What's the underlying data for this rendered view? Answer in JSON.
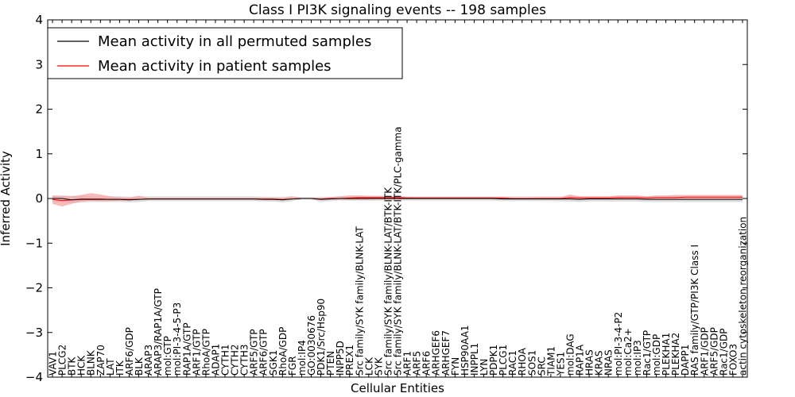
{
  "chart_data": {
    "type": "line",
    "title": "Class I PI3K signaling events -- 198 samples",
    "xlabel": "Cellular Entities",
    "ylabel": "Inferred Activity",
    "ylim": [
      -4,
      4
    ],
    "yticks": [
      -4,
      -3,
      -2,
      -1,
      0,
      1,
      2,
      3,
      4
    ],
    "ytick_labels": [
      "−4",
      "−3",
      "−2",
      "−1",
      "0",
      "1",
      "2",
      "3",
      "4"
    ],
    "grid": false,
    "legend_position": "top-left",
    "categories": [
      "VAV1",
      "PLCG2",
      "BTK",
      "HCK",
      "BLNK",
      "ZAP70",
      "LAT",
      "ITK",
      "ARF6/GDP",
      "BLK",
      "ARAP3",
      "ARAP3/RAP1A/GTP",
      "mol:GTP",
      "mol:PI-3-4-5-P3",
      "RAP1A/GTP",
      "ARF1/GTP",
      "RhoA/GTP",
      "ADAP1",
      "CYTH1",
      "CYTH2",
      "CYTH3",
      "ARF5/GTP",
      "ARF6/GTP",
      "SGK1",
      "RhoA/GDP",
      "FGR",
      "mol:IP4",
      "GO:0030676",
      "PDK1/Src/Hsp90",
      "PTEN",
      "INPP5D",
      "PREX1",
      "Src family/SYK family/BLNK-LAT",
      "LCK",
      "SYK",
      "Src family/SYK family/BLNK-LAT/BTK-ITK",
      "Src family/SYK family/BLNK-LAT/BTK-ITK/PLC-gamma",
      "ARF1",
      "ARF5",
      "ARF6",
      "ARHGEF6",
      "ARHGEF7",
      "FYN",
      "HSP90AA1",
      "INPPL1",
      "LYN",
      "PDPK1",
      "PLCG1",
      "RAC1",
      "RHOA",
      "SOS1",
      "SRC",
      "TIAM1",
      "YES1",
      "mol:DAG",
      "RAP1A",
      "HRAS",
      "KRAS",
      "NRAS",
      "mol:PI-3-4-P2",
      "mol:Ca2+",
      "mol:IP3",
      "Rac1/GTP",
      "mol:GDP",
      "PLEKHA1",
      "PLEKHA2",
      "DAPP1",
      "RAS family/GTP/PI3K Class I",
      "ARF1/GDP",
      "ARF5/GDP",
      "Rac1/GDP",
      "FOXO3",
      "actin cytoskeleton reorganization"
    ],
    "series": [
      {
        "name": "Mean activity in all permuted samples",
        "color": "#000000",
        "band_color": "#d9d9d9",
        "values": [
          0.0,
          0.0,
          -0.03,
          -0.02,
          -0.02,
          -0.02,
          -0.02,
          -0.02,
          -0.03,
          -0.02,
          -0.01,
          -0.01,
          -0.01,
          -0.01,
          -0.01,
          -0.01,
          -0.01,
          -0.01,
          -0.01,
          -0.01,
          -0.01,
          -0.01,
          -0.02,
          -0.02,
          -0.03,
          -0.01,
          0.0,
          0.0,
          -0.02,
          -0.01,
          0.0,
          0.0,
          0.0,
          0.0,
          0.0,
          0.0,
          0.0,
          0.0,
          0.0,
          0.0,
          0.0,
          0.0,
          0.0,
          0.0,
          0.0,
          0.0,
          0.0,
          -0.01,
          -0.01,
          -0.01,
          -0.01,
          -0.01,
          -0.01,
          -0.01,
          -0.01,
          -0.02,
          -0.01,
          -0.01,
          -0.01,
          -0.01,
          -0.01,
          -0.01,
          -0.02,
          -0.02,
          -0.02,
          -0.02,
          -0.02,
          -0.02,
          -0.02,
          -0.02,
          -0.02,
          -0.02,
          -0.02
        ],
        "lower": [
          -0.06,
          -0.08,
          -0.1,
          -0.09,
          -0.08,
          -0.08,
          -0.08,
          -0.08,
          -0.09,
          -0.08,
          -0.06,
          -0.06,
          -0.06,
          -0.06,
          -0.06,
          -0.06,
          -0.06,
          -0.06,
          -0.06,
          -0.06,
          -0.06,
          -0.06,
          -0.07,
          -0.07,
          -0.09,
          -0.06,
          -0.02,
          -0.02,
          -0.08,
          -0.06,
          -0.04,
          -0.05,
          -0.05,
          -0.05,
          -0.05,
          -0.05,
          -0.05,
          -0.05,
          -0.05,
          -0.05,
          -0.05,
          -0.05,
          -0.05,
          -0.05,
          -0.05,
          -0.05,
          -0.05,
          -0.06,
          -0.06,
          -0.06,
          -0.06,
          -0.06,
          -0.06,
          -0.07,
          -0.07,
          -0.08,
          -0.07,
          -0.07,
          -0.07,
          -0.07,
          -0.07,
          -0.07,
          -0.08,
          -0.08,
          -0.08,
          -0.08,
          -0.08,
          -0.08,
          -0.08,
          -0.08,
          -0.08,
          -0.08,
          -0.08
        ],
        "upper": [
          0.06,
          0.07,
          0.06,
          0.06,
          0.05,
          0.05,
          0.05,
          0.05,
          0.04,
          0.05,
          0.05,
          0.05,
          0.05,
          0.05,
          0.05,
          0.05,
          0.05,
          0.05,
          0.05,
          0.05,
          0.05,
          0.05,
          0.04,
          0.04,
          0.04,
          0.05,
          0.03,
          0.03,
          0.04,
          0.04,
          0.05,
          0.05,
          0.06,
          0.06,
          0.06,
          0.06,
          0.06,
          0.05,
          0.05,
          0.05,
          0.05,
          0.05,
          0.05,
          0.05,
          0.05,
          0.05,
          0.05,
          0.05,
          0.05,
          0.05,
          0.05,
          0.05,
          0.05,
          0.05,
          0.05,
          0.05,
          0.05,
          0.05,
          0.05,
          0.05,
          0.05,
          0.05,
          0.05,
          0.05,
          0.05,
          0.05,
          0.05,
          0.05,
          0.05,
          0.05,
          0.05,
          0.05,
          0.05
        ]
      },
      {
        "name": "Mean activity in patient samples",
        "color": "#ff0000",
        "band_color": "#f4a4a4",
        "values": [
          -0.02,
          -0.05,
          -0.03,
          -0.01,
          -0.01,
          -0.01,
          -0.02,
          -0.02,
          -0.02,
          -0.02,
          -0.01,
          -0.01,
          -0.01,
          -0.01,
          -0.01,
          -0.01,
          -0.01,
          -0.01,
          -0.01,
          -0.01,
          -0.01,
          -0.01,
          -0.01,
          -0.01,
          -0.02,
          -0.01,
          0.0,
          0.0,
          -0.01,
          0.0,
          0.0,
          0.01,
          0.02,
          0.02,
          0.02,
          0.02,
          0.02,
          0.01,
          0.01,
          0.01,
          0.01,
          0.01,
          0.01,
          0.01,
          0.01,
          0.01,
          0.01,
          0.01,
          0.0,
          0.0,
          0.0,
          0.0,
          0.0,
          0.0,
          0.02,
          0.01,
          0.01,
          0.01,
          0.01,
          0.02,
          0.02,
          0.02,
          0.01,
          0.02,
          0.02,
          0.02,
          0.03,
          0.03,
          0.03,
          0.03,
          0.03,
          0.03,
          0.03
        ],
        "lower": [
          -0.12,
          -0.18,
          -0.12,
          -0.07,
          -0.05,
          -0.06,
          -0.06,
          -0.05,
          -0.05,
          -0.03,
          -0.02,
          -0.02,
          -0.02,
          -0.02,
          -0.02,
          -0.02,
          -0.02,
          -0.02,
          -0.02,
          -0.02,
          -0.02,
          -0.02,
          -0.02,
          -0.02,
          -0.03,
          -0.01,
          -0.01,
          -0.01,
          -0.02,
          -0.02,
          -0.03,
          -0.03,
          -0.03,
          -0.03,
          -0.02,
          -0.02,
          -0.02,
          -0.01,
          -0.01,
          -0.01,
          -0.01,
          -0.01,
          -0.01,
          -0.01,
          -0.01,
          -0.01,
          -0.01,
          -0.01,
          -0.01,
          -0.01,
          -0.01,
          -0.01,
          -0.01,
          -0.01,
          -0.01,
          -0.01,
          -0.01,
          -0.01,
          -0.01,
          -0.01,
          -0.01,
          -0.01,
          -0.01,
          -0.01,
          -0.01,
          -0.01,
          -0.01,
          -0.01,
          -0.01,
          -0.01,
          -0.01,
          -0.01,
          -0.01
        ],
        "upper": [
          0.07,
          0.06,
          0.05,
          0.08,
          0.12,
          0.09,
          0.05,
          0.03,
          0.02,
          0.06,
          0.02,
          0.02,
          0.02,
          0.02,
          0.02,
          0.02,
          0.02,
          0.02,
          0.02,
          0.02,
          0.02,
          0.02,
          0.02,
          0.02,
          0.01,
          0.05,
          0.01,
          0.01,
          0.01,
          0.03,
          0.05,
          0.07,
          0.07,
          0.06,
          0.06,
          0.05,
          0.05,
          0.04,
          0.03,
          0.03,
          0.03,
          0.03,
          0.03,
          0.03,
          0.03,
          0.03,
          0.03,
          0.03,
          0.02,
          0.02,
          0.02,
          0.03,
          0.03,
          0.03,
          0.09,
          0.05,
          0.05,
          0.05,
          0.05,
          0.07,
          0.07,
          0.07,
          0.05,
          0.07,
          0.07,
          0.08,
          0.08,
          0.08,
          0.08,
          0.08,
          0.08,
          0.08,
          0.08
        ]
      }
    ]
  }
}
